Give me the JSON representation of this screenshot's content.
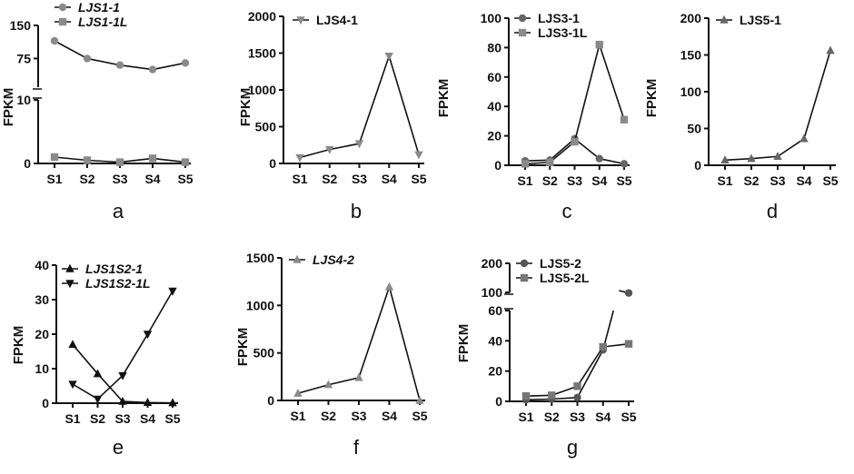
{
  "chart_data": [
    {
      "panel": "a",
      "type": "line",
      "ylabel": "FPKM",
      "categories": [
        "S1",
        "S2",
        "S3",
        "S4",
        "S5"
      ],
      "broken_axis": true,
      "y_lower_range": [
        0,
        10
      ],
      "y_upper_range": [
        10,
        150
      ],
      "y_lower_ticks": [
        "0",
        "10"
      ],
      "y_upper_ticks": [
        "75",
        "150"
      ],
      "legend_italic": true,
      "series": [
        {
          "name": "LJS1-1",
          "marker": "circle",
          "color": "#8a8a8a",
          "values": [
            115,
            75,
            60,
            50,
            65
          ]
        },
        {
          "name": "LJS1-1L",
          "marker": "square",
          "color": "#8a8a8a",
          "values": [
            1.0,
            0.5,
            0.2,
            0.8,
            0.2
          ]
        }
      ]
    },
    {
      "panel": "b",
      "type": "line",
      "ylabel": "FPKM",
      "categories": [
        "S1",
        "S2",
        "S3",
        "S4",
        "S5"
      ],
      "ylim": [
        0,
        2000
      ],
      "yticks": [
        "0",
        "500",
        "1000",
        "1500",
        "2000"
      ],
      "legend_italic": false,
      "series": [
        {
          "name": "LJS4-1",
          "marker": "triangle-down",
          "color": "#8a8a8a",
          "values": [
            80,
            190,
            270,
            1460,
            120
          ]
        }
      ]
    },
    {
      "panel": "c",
      "type": "line",
      "ylabel": "FPKM",
      "categories": [
        "S1",
        "S2",
        "S3",
        "S4",
        "S5"
      ],
      "ylim": [
        0,
        100
      ],
      "yticks": [
        "0",
        "20",
        "40",
        "60",
        "80",
        "100"
      ],
      "legend_italic": false,
      "series": [
        {
          "name": "LJS3-1",
          "marker": "circle",
          "color": "#666666",
          "values": [
            3,
            3.5,
            18,
            4.5,
            1
          ]
        },
        {
          "name": "LJS3-1L",
          "marker": "square",
          "color": "#8a8a8a",
          "values": [
            1,
            2,
            16,
            82,
            31
          ]
        }
      ]
    },
    {
      "panel": "d",
      "type": "line",
      "ylabel": "FPKM",
      "categories": [
        "S1",
        "S2",
        "S3",
        "S4",
        "S5"
      ],
      "ylim": [
        0,
        200
      ],
      "yticks": [
        "0",
        "50",
        "100",
        "150",
        "200"
      ],
      "legend_italic": false,
      "series": [
        {
          "name": "LJS5-1",
          "marker": "triangle",
          "color": "#666666",
          "values": [
            7,
            9,
            12,
            36,
            156
          ]
        }
      ]
    },
    {
      "panel": "e",
      "type": "line",
      "ylabel": "FPKM",
      "categories": [
        "S1",
        "S2",
        "S3",
        "S4",
        "S5"
      ],
      "ylim": [
        0,
        40
      ],
      "yticks": [
        "0",
        "10",
        "20",
        "30",
        "40"
      ],
      "legend_italic": true,
      "series": [
        {
          "name": "LJS1S2-1",
          "marker": "triangle",
          "color": "#111111",
          "values": [
            17,
            8.5,
            0.5,
            0.2,
            0.1
          ]
        },
        {
          "name": "LJS1S2-1L",
          "marker": "triangle-down",
          "color": "#111111",
          "values": [
            5.5,
            1.2,
            8,
            20,
            32.5
          ]
        }
      ]
    },
    {
      "panel": "f",
      "type": "line",
      "ylabel": "FPKM",
      "categories": [
        "S1",
        "S2",
        "S3",
        "S4",
        "S5"
      ],
      "ylim": [
        0,
        1500
      ],
      "yticks": [
        "0",
        "500",
        "1000",
        "1500"
      ],
      "legend_italic": true,
      "series": [
        {
          "name": "LJS4-2",
          "marker": "triangle",
          "color": "#8a8a8a",
          "values": [
            75,
            165,
            240,
            1195,
            0
          ]
        }
      ]
    },
    {
      "panel": "g",
      "type": "line",
      "ylabel": "FPKM",
      "categories": [
        "S1",
        "S2",
        "S3",
        "S4",
        "S5"
      ],
      "broken_axis": true,
      "y_lower_range": [
        0,
        60
      ],
      "y_upper_range": [
        100,
        200
      ],
      "y_lower_ticks": [
        "0",
        "20",
        "40",
        "60"
      ],
      "y_upper_ticks": [
        "100",
        "200"
      ],
      "legend_italic": false,
      "series": [
        {
          "name": "LJS5-2",
          "marker": "circle",
          "color": "#555555",
          "values": [
            1,
            1.5,
            2.5,
            34,
            98
          ]
        },
        {
          "name": "LJS5-2L",
          "marker": "square",
          "color": "#777777",
          "values": [
            3.5,
            4,
            10,
            36,
            38
          ]
        }
      ]
    }
  ]
}
